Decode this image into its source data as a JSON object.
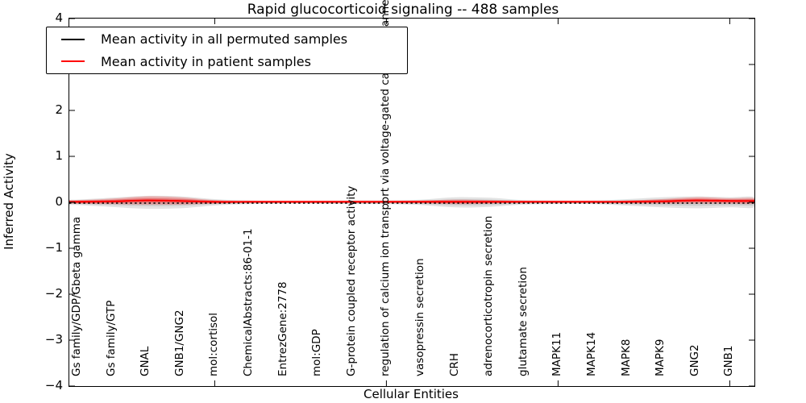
{
  "chart_data": {
    "type": "line",
    "title": "Rapid glucocorticoid signaling -- 488 samples",
    "xlabel": "Cellular Entities",
    "ylabel": "Inferred Activity",
    "ylim": [
      -4,
      4
    ],
    "grid": false,
    "yticks": [
      "4",
      "3",
      "2",
      "1",
      "0",
      "−1",
      "−2",
      "−3",
      "−4"
    ],
    "ytick_values": [
      4,
      3,
      2,
      1,
      0,
      -1,
      -2,
      -3,
      -4
    ],
    "frame_tick_entities": [
      5,
      10,
      15,
      20
    ],
    "categories": [
      "Gs family/GDP/Gbeta gamma",
      "Gs family/GTP",
      "GNAL",
      "GNB1/GNG2",
      "mol:cortisol",
      "ChemicalAbstracts:86-01-1",
      "EntrezGene:2778",
      "mol:GDP",
      "G-protein coupled receptor activity",
      "regulation of calcium ion transport via voltage-gated calcium channel",
      "vasopressin secretion",
      "CRH",
      "adrenocorticotropin secretion",
      "glutamate secretion",
      "MAPK11",
      "MAPK14",
      "MAPK8",
      "MAPK9",
      "GNG2",
      "GNB1"
    ],
    "legend": {
      "position": "upper left",
      "items": [
        {
          "label": "Mean activity in all permuted samples",
          "color": "#000000",
          "line_style": "dashed"
        },
        {
          "label": "Mean activity in patient samples",
          "color": "#ff0000",
          "line_style": "solid"
        }
      ]
    },
    "series": [
      {
        "name": "Mean activity in all permuted samples",
        "color": "#000000",
        "line_style": "dashed",
        "values": [
          0,
          0,
          0,
          0,
          0,
          0,
          0,
          0,
          0,
          0,
          0,
          0,
          0,
          0,
          0,
          0,
          0,
          0,
          0,
          0
        ]
      },
      {
        "name": "Mean activity in patient samples",
        "color": "#ff0000",
        "line_style": "solid",
        "values": [
          0.01,
          0.02,
          0.04,
          0.03,
          0.01,
          0.01,
          0.01,
          0.01,
          0.01,
          0.01,
          0.01,
          0.01,
          0.01,
          0.01,
          0.01,
          0.01,
          0.01,
          0.02,
          0.04,
          0.03
        ]
      }
    ],
    "spread_halfwidth": {
      "permuted": [
        0.06,
        0.1,
        0.14,
        0.13,
        0.07,
        0.04,
        0.03,
        0.03,
        0.04,
        0.04,
        0.06,
        0.11,
        0.1,
        0.05,
        0.04,
        0.04,
        0.07,
        0.11,
        0.13,
        0.11
      ],
      "patient": [
        0.04,
        0.06,
        0.09,
        0.08,
        0.04,
        0.02,
        0.02,
        0.02,
        0.02,
        0.02,
        0.03,
        0.05,
        0.04,
        0.02,
        0.02,
        0.02,
        0.03,
        0.05,
        0.07,
        0.06
      ]
    },
    "colors": {
      "permuted_fill": "rgba(128,128,128,0.22)",
      "patient_fill": "rgba(255,0,0,0.24)",
      "permuted_line": "#000000",
      "patient_line": "#ff0000",
      "frame": "#000000"
    }
  }
}
